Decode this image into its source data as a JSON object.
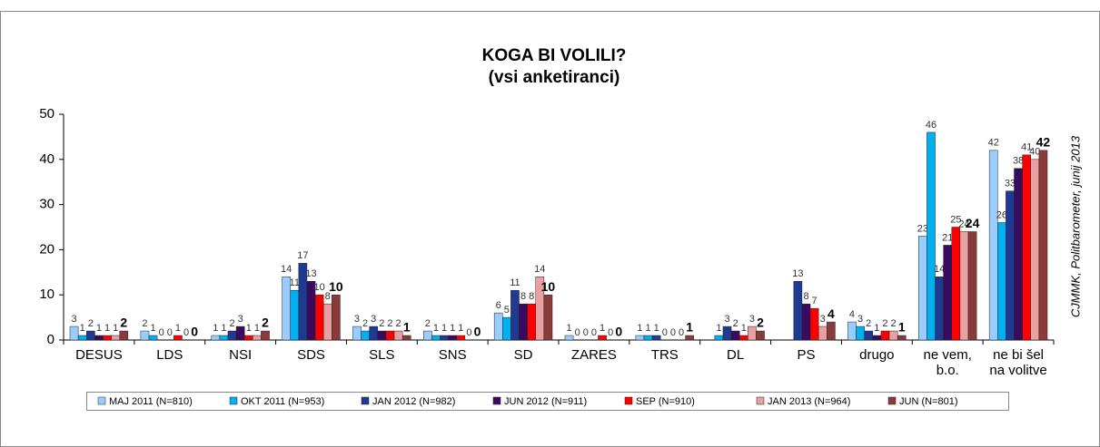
{
  "chart_data": {
    "type": "bar",
    "title": "KOGA BI VOLILI?",
    "subtitle": "(vsi anketiranci)",
    "annotation": "CJMMK, Politbarometer, junij 2013",
    "categories": [
      "DESUS",
      "LDS",
      "NSI",
      "SDS",
      "SLS",
      "SNS",
      "SD",
      "ZARES",
      "TRS",
      "DL",
      "PS",
      "drugo",
      "ne vem, b.o.",
      "ne bi šel na volitve"
    ],
    "series": [
      {
        "name": "MAJ 2011 (N=810)",
        "color": "#99ccff",
        "values": [
          3,
          2,
          1,
          14,
          3,
          2,
          6,
          1,
          1,
          null,
          null,
          4,
          23,
          42
        ]
      },
      {
        "name": "OKT 2011 (N=953)",
        "color": "#00b0f0",
        "values": [
          1,
          1,
          1,
          11,
          2,
          1,
          5,
          0,
          1,
          1,
          null,
          3,
          46,
          26
        ]
      },
      {
        "name": "JAN 2012 (N=982)",
        "color": "#1f3a93",
        "values": [
          2,
          0,
          2,
          17,
          3,
          1,
          11,
          0,
          1,
          3,
          13,
          2,
          14,
          33
        ]
      },
      {
        "name": "JUN 2012 (N=911)",
        "color": "#3a0a5e",
        "values": [
          1,
          0,
          3,
          13,
          2,
          1,
          8,
          0,
          0,
          2,
          8,
          1,
          21,
          38
        ]
      },
      {
        "name": "SEP (N=910)",
        "color": "#ff0000",
        "values": [
          1,
          1,
          1,
          10,
          2,
          1,
          8,
          1,
          0,
          1,
          7,
          2,
          25,
          41
        ]
      },
      {
        "name": "JAN 2013 (N=964)",
        "color": "#e8a0a0",
        "values": [
          1,
          0,
          1,
          8,
          2,
          0,
          14,
          0,
          0,
          3,
          3,
          2,
          24,
          40
        ]
      },
      {
        "name": "JUN (N=801)",
        "color": "#8b3a3a",
        "values": [
          2,
          0,
          2,
          10,
          1,
          0,
          10,
          0,
          1,
          2,
          4,
          1,
          24,
          42
        ]
      }
    ],
    "ylim": [
      0,
      50
    ],
    "yticks": [
      0,
      10,
      20,
      30,
      40,
      50
    ],
    "grid": false,
    "legend": "bottom"
  }
}
